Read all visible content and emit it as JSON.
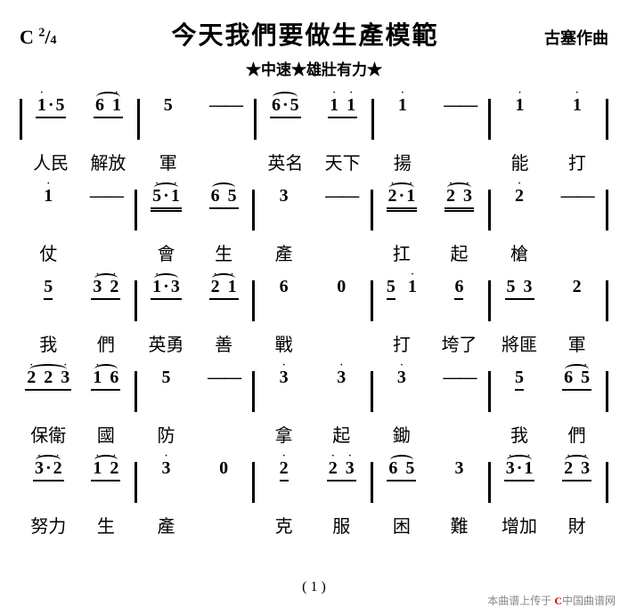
{
  "key": "C",
  "timesig_top": "2",
  "timesig_bot": "4",
  "title": "今天我們要做生產模範",
  "composer": "古塞作曲",
  "tempo": "★中速★雄壯有力★",
  "page_num": "( 1 )",
  "watermark_prefix": "本曲谱上传于",
  "watermark_site": "中国曲谱网",
  "lines": [
    {
      "notes": [
        [
          "i·5",
          "6 i"
        ],
        [
          "5",
          "——"
        ],
        [
          "6·5",
          "i i"
        ],
        [
          "i",
          "——"
        ],
        [
          "i",
          "i"
        ]
      ],
      "lyrics": [
        "人民",
        "解放",
        "軍",
        "",
        "英名",
        "天下",
        "揚",
        "",
        "能",
        "打"
      ]
    },
    {
      "notes": [
        [
          "i",
          "——"
        ],
        [
          "5·i",
          "6 5"
        ],
        [
          "3",
          "——"
        ],
        [
          "2·i",
          "2 3"
        ],
        [
          "2",
          "——"
        ]
      ],
      "lyrics": [
        "仗",
        "",
        "會",
        "生",
        "產",
        "",
        "扛",
        "起",
        "槍",
        ""
      ]
    },
    {
      "notes": [
        [
          "5",
          "3 2"
        ],
        [
          "i·3",
          "2 i"
        ],
        [
          "6",
          "0"
        ],
        [
          "5  i",
          "6"
        ],
        [
          "5 3",
          "2"
        ]
      ],
      "lyrics": [
        "我",
        "們",
        "英勇",
        "善",
        "戰",
        "",
        "打",
        "垮了",
        "將匪",
        "軍"
      ]
    },
    {
      "notes": [
        [
          "2 2 3",
          "i 6"
        ],
        [
          "5",
          "——"
        ],
        [
          "3",
          "3"
        ],
        [
          "3",
          "——"
        ],
        [
          "5",
          "6 5"
        ]
      ],
      "lyrics": [
        "保衛",
        "國",
        "防",
        "",
        "拿",
        "起",
        "鋤",
        "",
        "我",
        "們"
      ]
    },
    {
      "notes": [
        [
          "3·2",
          "i 2"
        ],
        [
          "3",
          "0"
        ],
        [
          "2",
          "2 3"
        ],
        [
          "6 5",
          "3"
        ],
        [
          "3·i",
          "2 3"
        ]
      ],
      "lyrics": [
        "努力",
        "生",
        "產",
        "",
        "克",
        "服",
        "困",
        "難",
        "增加",
        "財"
      ]
    }
  ]
}
